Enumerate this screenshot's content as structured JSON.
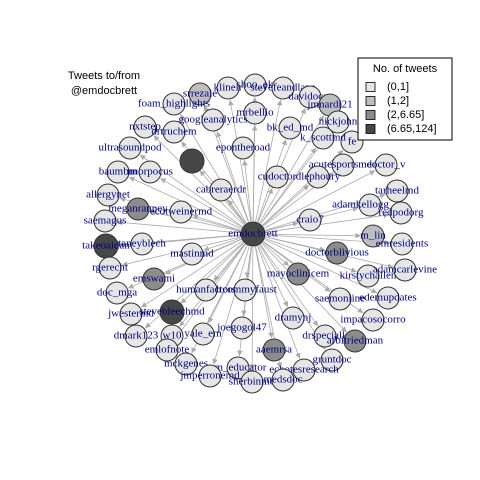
{
  "title_lines": [
    "Tweets to/from",
    "@emdocbrett"
  ],
  "legend": {
    "title": "No. of tweets",
    "items": [
      {
        "label": "(0,1]",
        "color": "#e6e6e6"
      },
      {
        "label": "(1,2]",
        "color": "#bebebe"
      },
      {
        "label": "(2,6.65]",
        "color": "#8c8c8c"
      },
      {
        "label": "(6.65,124]",
        "color": "#474747"
      }
    ]
  },
  "nodes": [
    {
      "label": "emdocbrett",
      "color": "#474747"
    },
    {
      "label": "shoo_ek",
      "color": "#e6e6e6"
    },
    {
      "label": "klinelr",
      "color": "#e6e6e6"
    },
    {
      "label": "stevefeandlane",
      "color": "#e6e6e6"
    },
    {
      "label": "srrezale",
      "color": "#bebebe"
    },
    {
      "label": "davidocar",
      "color": "#e6e6e6"
    },
    {
      "label": "jmnardi21",
      "color": "#bebebe"
    },
    {
      "label": "foam_highlights",
      "color": "#e6e6e6"
    },
    {
      "label": "mrbellio",
      "color": "#e6e6e6"
    },
    {
      "label": "googleanalytics",
      "color": "#e6e6e6"
    },
    {
      "label": "nickjohn",
      "color": "#e6e6e6"
    },
    {
      "label": "bk_ed_md",
      "color": "#e6e6e6"
    },
    {
      "label": "nxtstep",
      "color": "#e6e6e6"
    },
    {
      "label": "drtruchem",
      "color": "#e6e6e6"
    },
    {
      "label": "fe",
      "color": "#e6e6e6"
    },
    {
      "label": "k_scottmd",
      "color": "#e6e6e6"
    },
    {
      "label": "ultrasoundpod",
      "color": "#e6e6e6"
    },
    {
      "label": "epontheroad",
      "color": "#e6e6e6"
    },
    {
      "label": "acutesportsmed",
      "color": "#e6e6e6"
    },
    {
      "label": "doctor_v",
      "color": "#e6e6e6"
    },
    {
      "label": "baumbm",
      "color": "#e6e6e6"
    },
    {
      "label": "nnorpocus",
      "color": "#e6e6e6"
    },
    {
      "label": null,
      "color": "#474747"
    },
    {
      "label": "cudoctor",
      "color": "#e6e6e6"
    },
    {
      "label": "dlephoury",
      "color": "#e6e6e6"
    },
    {
      "label": "cabreraerdr",
      "color": "#e6e6e6"
    },
    {
      "label": "tarheelmd",
      "color": "#e6e6e6"
    },
    {
      "label": "allergynet",
      "color": "#e6e6e6"
    },
    {
      "label": "adamkellogg_em",
      "color": "#e6e6e6"
    },
    {
      "label": "redpodorg",
      "color": "#e6e6e6"
    },
    {
      "label": "meganranney",
      "color": "#8c8c8c"
    },
    {
      "label": "ecotweinermd",
      "color": "#e6e6e6"
    },
    {
      "label": "craio7",
      "color": "#e6e6e6"
    },
    {
      "label": "saemagus",
      "color": "#e6e6e6"
    },
    {
      "label": "m_lin",
      "color": "#bebebe"
    },
    {
      "label": "takeoaidan",
      "color": "#474747"
    },
    {
      "label": "taneyblech",
      "color": "#e6e6e6"
    },
    {
      "label": "emresidents",
      "color": "#e6e6e6"
    },
    {
      "label": "mastinmd",
      "color": "#e6e6e6"
    },
    {
      "label": "doctorblivious",
      "color": "#8c8c8c"
    },
    {
      "label": "kirstychallen",
      "color": "#e6e6e6"
    },
    {
      "label": "adamcarlevine",
      "color": "#e6e6e6"
    },
    {
      "label": "rgerecht",
      "color": "#e6e6e6"
    },
    {
      "label": "emswami",
      "color": "#8c8c8c"
    },
    {
      "label": "mayoclinicem",
      "color": "#8c8c8c"
    },
    {
      "label": "drcommyfaust",
      "color": "#e6e6e6"
    },
    {
      "label": "humanfactors",
      "color": "#e6e6e6"
    },
    {
      "label": "doc_mga",
      "color": "#e6e6e6"
    },
    {
      "label": "saemonline",
      "color": "#e6e6e6"
    },
    {
      "label": "edemupdates",
      "color": "#e6e6e6"
    },
    {
      "label": "jwestermd",
      "color": "#e6e6e6"
    },
    {
      "label": "stevebleechmd",
      "color": "#474747"
    },
    {
      "label": "dramynj",
      "color": "#e6e6e6"
    },
    {
      "label": "impacosocorro",
      "color": "#e6e6e6"
    },
    {
      "label": "joegogol47",
      "color": "#e6e6e6"
    },
    {
      "label": "dmark123",
      "color": "#e6e6e6"
    },
    {
      "label": "w10",
      "color": "#e6e6e6"
    },
    {
      "label": "yale_em",
      "color": "#e6e6e6"
    },
    {
      "label": "drspecialk",
      "color": "#e6e6e6"
    },
    {
      "label": "arbitriedman",
      "color": "#8c8c8c"
    },
    {
      "label": "emlofnote",
      "color": "#e6e6e6"
    },
    {
      "label": "aaemrsa",
      "color": "#8c8c8c"
    },
    {
      "label": "gruntdoc",
      "color": "#e6e6e6"
    },
    {
      "label": "mckgenes",
      "color": "#e6e6e6"
    },
    {
      "label": "em_educator",
      "color": "#e6e6e6"
    },
    {
      "label": "jmperronemd",
      "color": "#e6e6e6"
    },
    {
      "label": "echotesresearch",
      "color": "#e6e6e6"
    },
    {
      "label": "sherbinmd",
      "color": "#e6e6e6"
    },
    {
      "label": "medsdoc",
      "color": "#e6e6e6"
    }
  ]
}
